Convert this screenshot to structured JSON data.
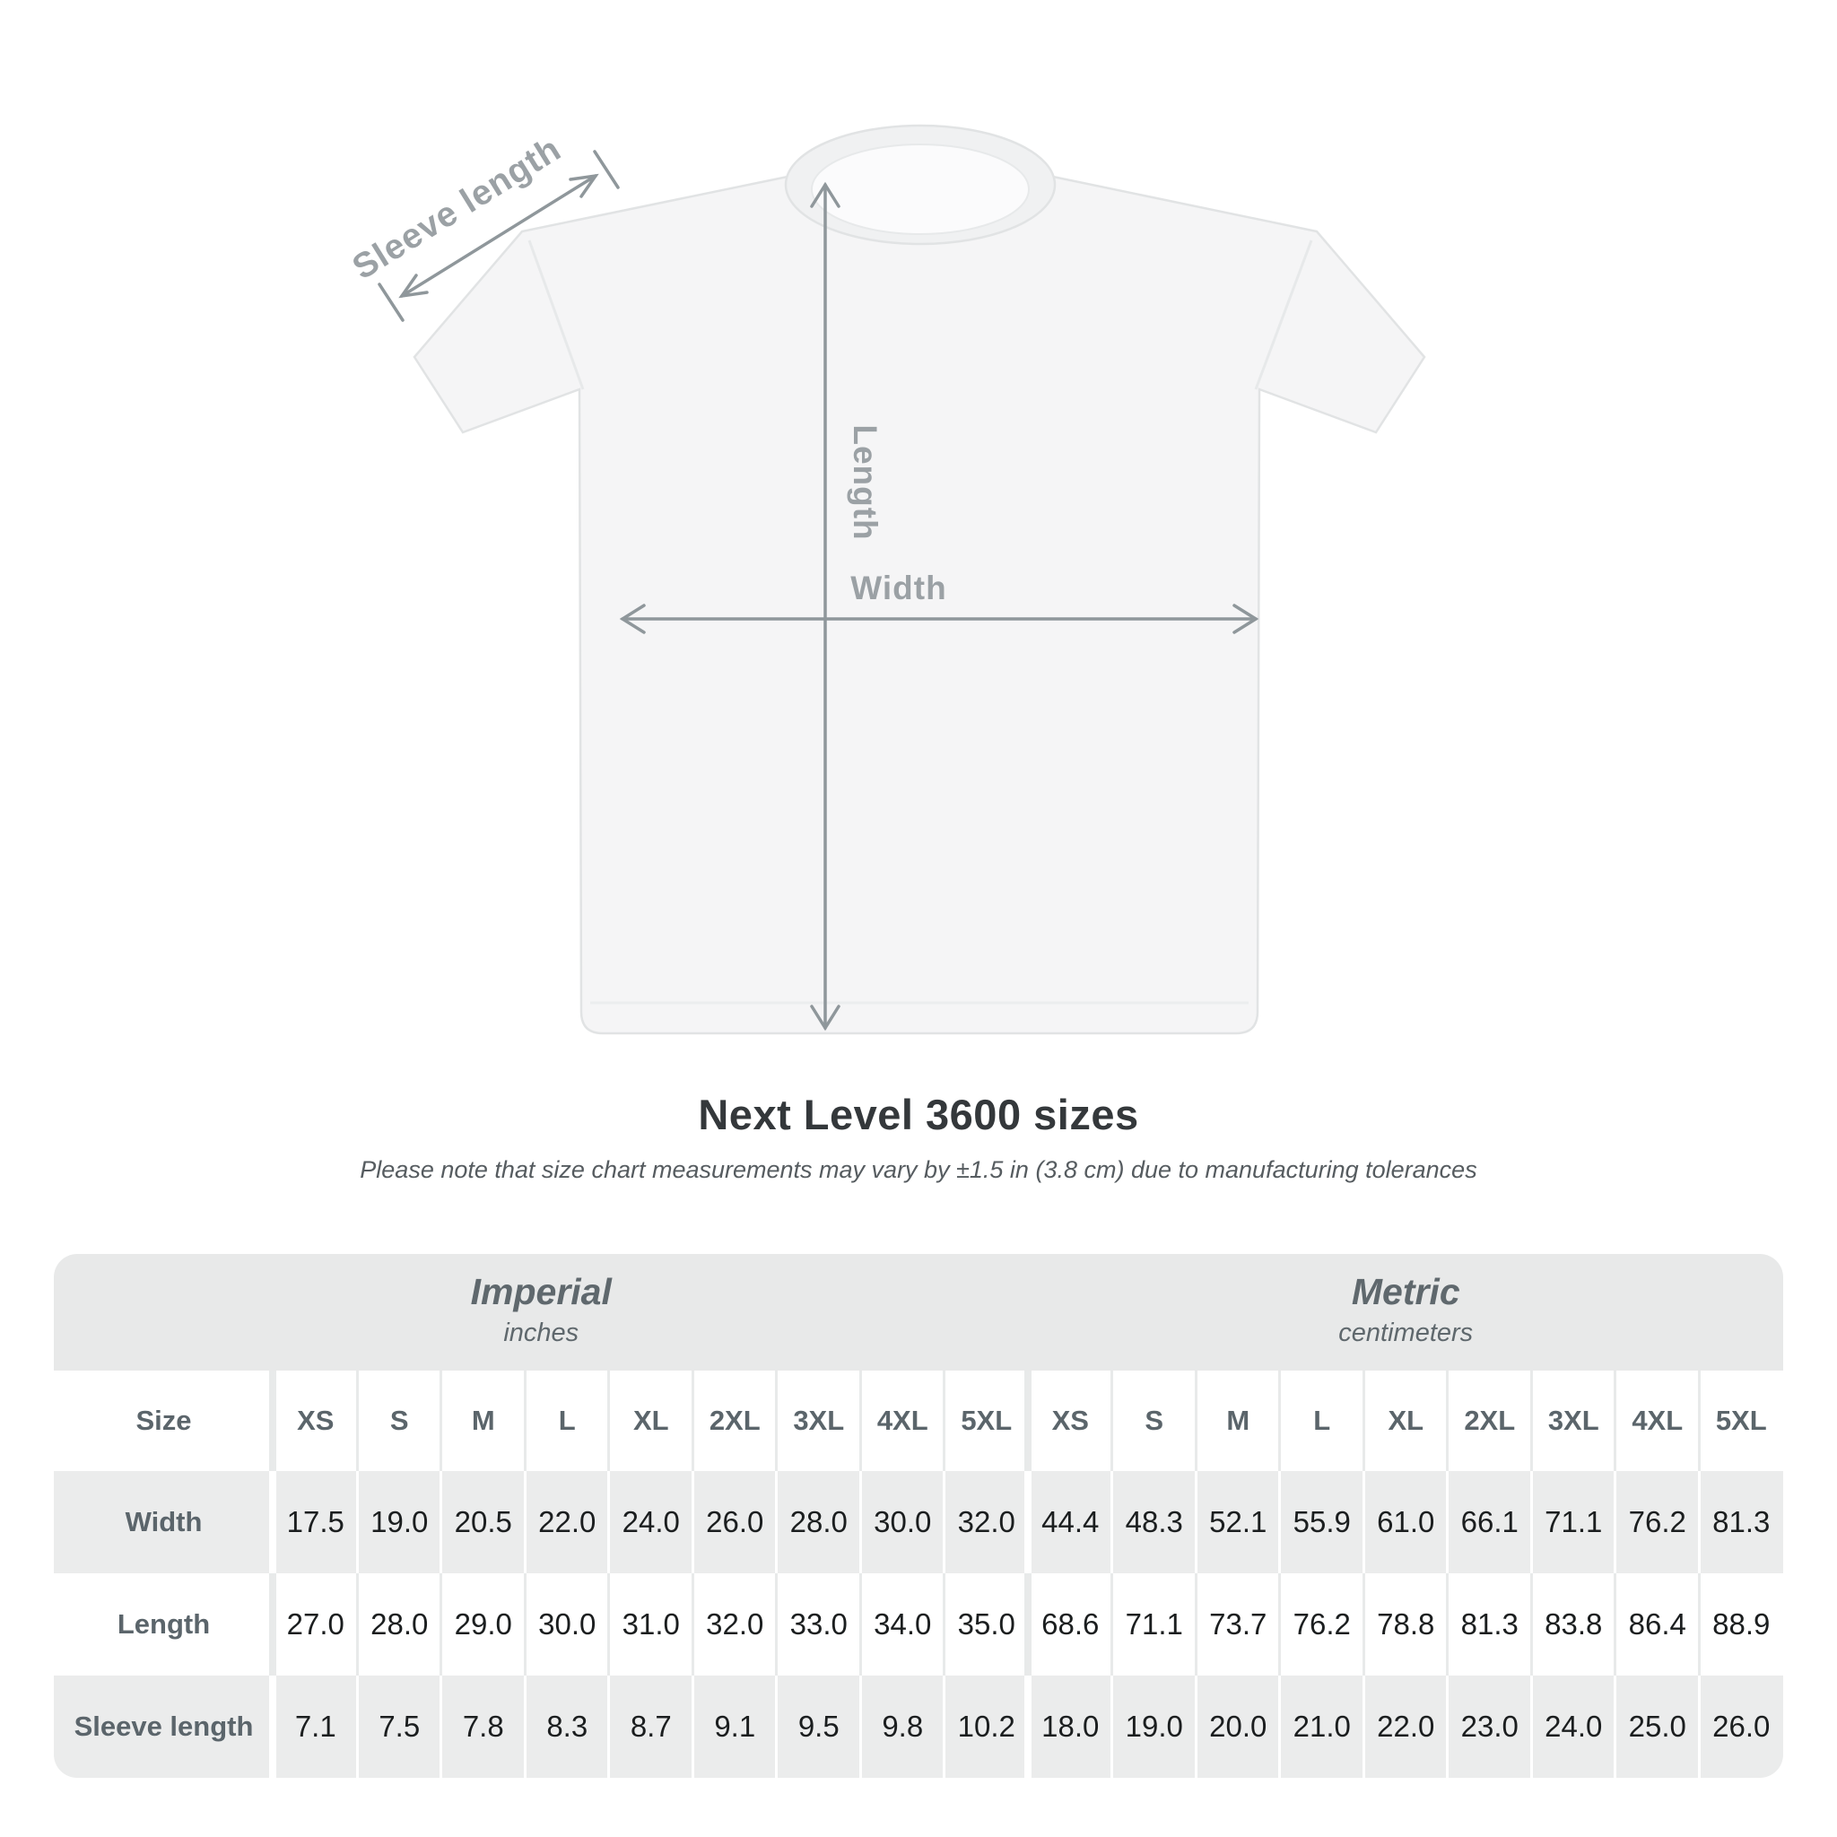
{
  "diagram": {
    "sleeve_label": "Sleeve length",
    "length_label": "Length",
    "width_label": "Width",
    "arrow_color": "#8f979b",
    "label_color": "#9ba1a5",
    "shirt_fill": "#f5f5f6"
  },
  "title": "Next Level 3600 sizes",
  "subtitle": "Please note that size chart measurements may vary by ±1.5 in (3.8 cm) due to manufacturing tolerances",
  "table": {
    "imperial": {
      "title": "Imperial",
      "unit": "inches"
    },
    "metric": {
      "title": "Metric",
      "unit": "centimeters"
    },
    "size_label": "Size",
    "sizes_imperial": [
      "XS",
      "S",
      "M",
      "L",
      "XL",
      "2XL",
      "3XL",
      "4XL",
      "5XL"
    ],
    "sizes_metric": [
      "XS",
      "S",
      "M",
      "L",
      "XL",
      "2XL",
      "3XL",
      "4XL",
      "5XL"
    ],
    "rows": [
      {
        "label": "Width",
        "imperial": [
          "17.5",
          "19.0",
          "20.5",
          "22.0",
          "24.0",
          "26.0",
          "28.0",
          "30.0",
          "32.0"
        ],
        "metric": [
          "44.4",
          "48.3",
          "52.1",
          "55.9",
          "61.0",
          "66.1",
          "71.1",
          "76.2",
          "81.3"
        ]
      },
      {
        "label": "Length",
        "imperial": [
          "27.0",
          "28.0",
          "29.0",
          "30.0",
          "31.0",
          "32.0",
          "33.0",
          "34.0",
          "35.0"
        ],
        "metric": [
          "68.6",
          "71.1",
          "73.7",
          "76.2",
          "78.8",
          "81.3",
          "83.8",
          "86.4",
          "88.9"
        ]
      },
      {
        "label": "Sleeve length",
        "imperial": [
          "7.1",
          "7.5",
          "7.8",
          "8.3",
          "8.7",
          "9.1",
          "9.5",
          "9.8",
          "10.2"
        ],
        "metric": [
          "18.0",
          "19.0",
          "20.0",
          "21.0",
          "22.0",
          "23.0",
          "24.0",
          "25.0",
          "26.0"
        ]
      }
    ]
  }
}
